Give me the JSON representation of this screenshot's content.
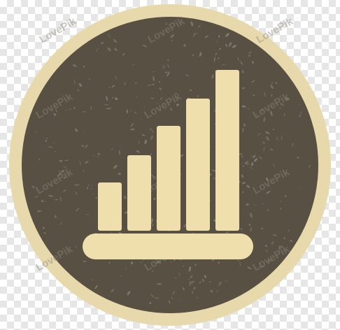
{
  "icon": {
    "name": "bar-chart-growth-icon",
    "bar_count": 5,
    "relative_heights": [
      0.3,
      0.47,
      0.65,
      0.82,
      1.0
    ]
  },
  "watermark": {
    "text": "LovePik"
  },
  "colors": {
    "ring": "#e7d9ab",
    "badge": "#575043",
    "bars": "#efdfac",
    "speckle": "#7f7a70",
    "checker": "#e6e6e6"
  }
}
